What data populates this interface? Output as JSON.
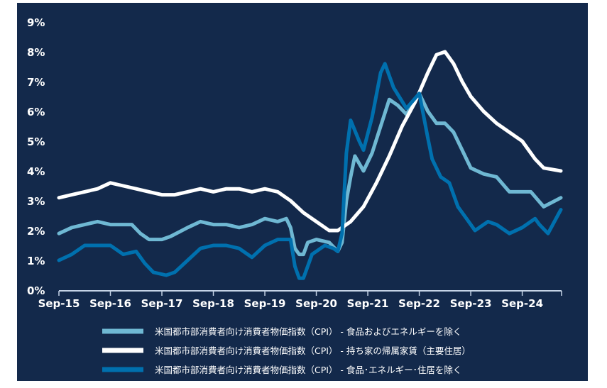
{
  "colors": {
    "background": "#13294b",
    "axis": "#c5d3e6",
    "text": "#ffffff"
  },
  "chart_data": {
    "type": "line",
    "title": "",
    "xlabel": "",
    "ylabel": "",
    "ylim": [
      0,
      9
    ],
    "y_ticks": [
      "0%",
      "1%",
      "2%",
      "3%",
      "4%",
      "5%",
      "6%",
      "7%",
      "8%",
      "9%"
    ],
    "x_ticks": [
      "Sep-15",
      "Sep-16",
      "Sep-17",
      "Sep-18",
      "Sep-19",
      "Sep-20",
      "Sep-21",
      "Sep-22",
      "Sep-23",
      "Sep-24"
    ],
    "x_range": [
      "2015-09",
      "2025-06"
    ],
    "grid": false,
    "legend_position": "bottom",
    "series": [
      {
        "name": "米国都市部消費者向け消費者物価指数（CPI） - 食品およびエネルギーを除く",
        "color": "#6fb8d3",
        "width": 5,
        "points": [
          [
            "2015-09",
            1.9
          ],
          [
            "2015-12",
            2.1
          ],
          [
            "2016-03",
            2.2
          ],
          [
            "2016-06",
            2.3
          ],
          [
            "2016-09",
            2.2
          ],
          [
            "2016-12",
            2.2
          ],
          [
            "2017-02",
            2.2
          ],
          [
            "2017-04",
            1.9
          ],
          [
            "2017-06",
            1.7
          ],
          [
            "2017-09",
            1.7
          ],
          [
            "2017-11",
            1.8
          ],
          [
            "2018-03",
            2.1
          ],
          [
            "2018-06",
            2.3
          ],
          [
            "2018-09",
            2.2
          ],
          [
            "2018-12",
            2.2
          ],
          [
            "2019-03",
            2.1
          ],
          [
            "2019-06",
            2.2
          ],
          [
            "2019-09",
            2.4
          ],
          [
            "2019-12",
            2.3
          ],
          [
            "2020-02",
            2.4
          ],
          [
            "2020-03",
            2.1
          ],
          [
            "2020-04",
            1.4
          ],
          [
            "2020-05",
            1.2
          ],
          [
            "2020-06",
            1.2
          ],
          [
            "2020-07",
            1.6
          ],
          [
            "2020-09",
            1.7
          ],
          [
            "2020-12",
            1.6
          ],
          [
            "2021-02",
            1.3
          ],
          [
            "2021-03",
            1.6
          ],
          [
            "2021-04",
            3.0
          ],
          [
            "2021-05",
            3.8
          ],
          [
            "2021-06",
            4.5
          ],
          [
            "2021-08",
            4.0
          ],
          [
            "2021-10",
            4.6
          ],
          [
            "2021-12",
            5.5
          ],
          [
            "2022-02",
            6.4
          ],
          [
            "2022-04",
            6.2
          ],
          [
            "2022-06",
            5.9
          ],
          [
            "2022-09",
            6.6
          ],
          [
            "2022-11",
            6.0
          ],
          [
            "2023-01",
            5.6
          ],
          [
            "2023-03",
            5.6
          ],
          [
            "2023-05",
            5.3
          ],
          [
            "2023-07",
            4.7
          ],
          [
            "2023-09",
            4.1
          ],
          [
            "2023-12",
            3.9
          ],
          [
            "2024-03",
            3.8
          ],
          [
            "2024-06",
            3.3
          ],
          [
            "2024-09",
            3.3
          ],
          [
            "2024-11",
            3.3
          ],
          [
            "2025-02",
            2.8
          ],
          [
            "2025-06",
            3.1
          ]
        ]
      },
      {
        "name": "米国都市部消費者向け消費者物価指数（CPI） - 持ち家の帰属家賃（主要住居）",
        "color": "#ffffff",
        "width": 5,
        "points": [
          [
            "2015-09",
            3.1
          ],
          [
            "2015-12",
            3.2
          ],
          [
            "2016-03",
            3.3
          ],
          [
            "2016-06",
            3.4
          ],
          [
            "2016-09",
            3.6
          ],
          [
            "2016-12",
            3.5
          ],
          [
            "2017-03",
            3.4
          ],
          [
            "2017-06",
            3.3
          ],
          [
            "2017-09",
            3.2
          ],
          [
            "2017-12",
            3.2
          ],
          [
            "2018-03",
            3.3
          ],
          [
            "2018-06",
            3.4
          ],
          [
            "2018-09",
            3.3
          ],
          [
            "2018-12",
            3.4
          ],
          [
            "2019-03",
            3.4
          ],
          [
            "2019-06",
            3.3
          ],
          [
            "2019-09",
            3.4
          ],
          [
            "2019-12",
            3.3
          ],
          [
            "2020-03",
            3.0
          ],
          [
            "2020-06",
            2.6
          ],
          [
            "2020-09",
            2.3
          ],
          [
            "2020-12",
            2.0
          ],
          [
            "2021-02",
            2.0
          ],
          [
            "2021-05",
            2.3
          ],
          [
            "2021-08",
            2.8
          ],
          [
            "2021-11",
            3.6
          ],
          [
            "2022-02",
            4.5
          ],
          [
            "2022-05",
            5.5
          ],
          [
            "2022-08",
            6.3
          ],
          [
            "2022-11",
            7.3
          ],
          [
            "2023-01",
            7.9
          ],
          [
            "2023-03",
            8.0
          ],
          [
            "2023-05",
            7.6
          ],
          [
            "2023-07",
            7.0
          ],
          [
            "2023-09",
            6.5
          ],
          [
            "2023-12",
            6.0
          ],
          [
            "2024-03",
            5.6
          ],
          [
            "2024-06",
            5.3
          ],
          [
            "2024-09",
            5.0
          ],
          [
            "2024-12",
            4.4
          ],
          [
            "2025-02",
            4.1
          ],
          [
            "2025-06",
            4.0
          ]
        ]
      },
      {
        "name": "米国都市部消費者向け消費者物価指数（CPI） - 食品･エネルギー･住居を除く",
        "color": "#0070ae",
        "width": 5,
        "points": [
          [
            "2015-09",
            1.0
          ],
          [
            "2015-12",
            1.2
          ],
          [
            "2016-03",
            1.5
          ],
          [
            "2016-06",
            1.5
          ],
          [
            "2016-09",
            1.5
          ],
          [
            "2016-12",
            1.2
          ],
          [
            "2017-03",
            1.3
          ],
          [
            "2017-05",
            0.9
          ],
          [
            "2017-07",
            0.6
          ],
          [
            "2017-10",
            0.5
          ],
          [
            "2017-12",
            0.6
          ],
          [
            "2018-03",
            1.0
          ],
          [
            "2018-06",
            1.4
          ],
          [
            "2018-09",
            1.5
          ],
          [
            "2018-12",
            1.5
          ],
          [
            "2019-03",
            1.4
          ],
          [
            "2019-06",
            1.1
          ],
          [
            "2019-09",
            1.5
          ],
          [
            "2019-12",
            1.7
          ],
          [
            "2020-03",
            1.7
          ],
          [
            "2020-04",
            0.8
          ],
          [
            "2020-05",
            0.4
          ],
          [
            "2020-06",
            0.4
          ],
          [
            "2020-08",
            1.2
          ],
          [
            "2020-11",
            1.5
          ],
          [
            "2021-01",
            1.4
          ],
          [
            "2021-02",
            1.3
          ],
          [
            "2021-03",
            1.9
          ],
          [
            "2021-04",
            4.6
          ],
          [
            "2021-05",
            5.7
          ],
          [
            "2021-07",
            5.0
          ],
          [
            "2021-08",
            4.7
          ],
          [
            "2021-10",
            5.8
          ],
          [
            "2021-12",
            7.3
          ],
          [
            "2022-01",
            7.6
          ],
          [
            "2022-03",
            6.8
          ],
          [
            "2022-06",
            6.1
          ],
          [
            "2022-09",
            6.6
          ],
          [
            "2022-11",
            5.1
          ],
          [
            "2022-12",
            4.4
          ],
          [
            "2023-02",
            3.8
          ],
          [
            "2023-04",
            3.6
          ],
          [
            "2023-06",
            2.8
          ],
          [
            "2023-08",
            2.4
          ],
          [
            "2023-10",
            2.0
          ],
          [
            "2024-01",
            2.3
          ],
          [
            "2024-03",
            2.2
          ],
          [
            "2024-06",
            1.9
          ],
          [
            "2024-09",
            2.1
          ],
          [
            "2024-12",
            2.4
          ],
          [
            "2025-01",
            2.2
          ],
          [
            "2025-03",
            1.9
          ],
          [
            "2025-06",
            2.7
          ]
        ]
      }
    ]
  }
}
